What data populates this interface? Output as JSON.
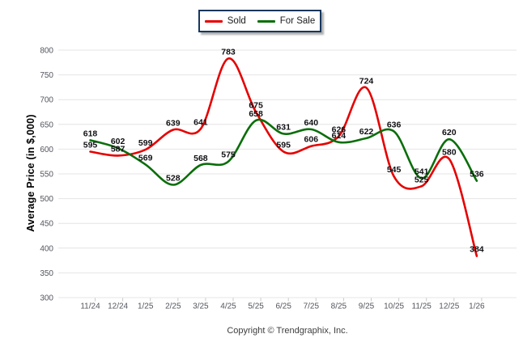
{
  "legend": {
    "items": [
      {
        "label": "Sold",
        "color": "#e60000"
      },
      {
        "label": "For Sale",
        "color": "#0a6e0a"
      }
    ]
  },
  "footer": {
    "copyright": "Copyright © Trendgraphix, Inc."
  },
  "chart_data": {
    "type": "line",
    "title": "",
    "categories": [
      "11/24",
      "12/24",
      "1/25",
      "2/25",
      "3/25",
      "4/25",
      "5/25",
      "6/25",
      "7/25",
      "8/25",
      "9/25",
      "10/25",
      "11/25",
      "12/25",
      "1/26"
    ],
    "series": [
      {
        "name": "Sold",
        "color": "#e60000",
        "values": [
          595,
          587,
          599,
          639,
          641,
          783,
          675,
          595,
          606,
          626,
          724,
          545,
          525,
          580,
          384
        ]
      },
      {
        "name": "For Sale",
        "color": "#0a6e0a",
        "values": [
          618,
          602,
          569,
          528,
          568,
          575,
          658,
          631,
          640,
          614,
          622,
          636,
          541,
          620,
          536
        ]
      }
    ],
    "xlabel": "",
    "ylabel": "Average Price (in $,000)",
    "ylim": [
      300,
      800
    ],
    "ytick_step": 50,
    "grid": true,
    "legend_position": "top-center",
    "data_labels": true,
    "smooth": true,
    "colors": {
      "gridline": "#e4e4e4",
      "tick_text": "#53555e",
      "data_label_text": "#101014",
      "legend_border": "#17375e"
    }
  }
}
